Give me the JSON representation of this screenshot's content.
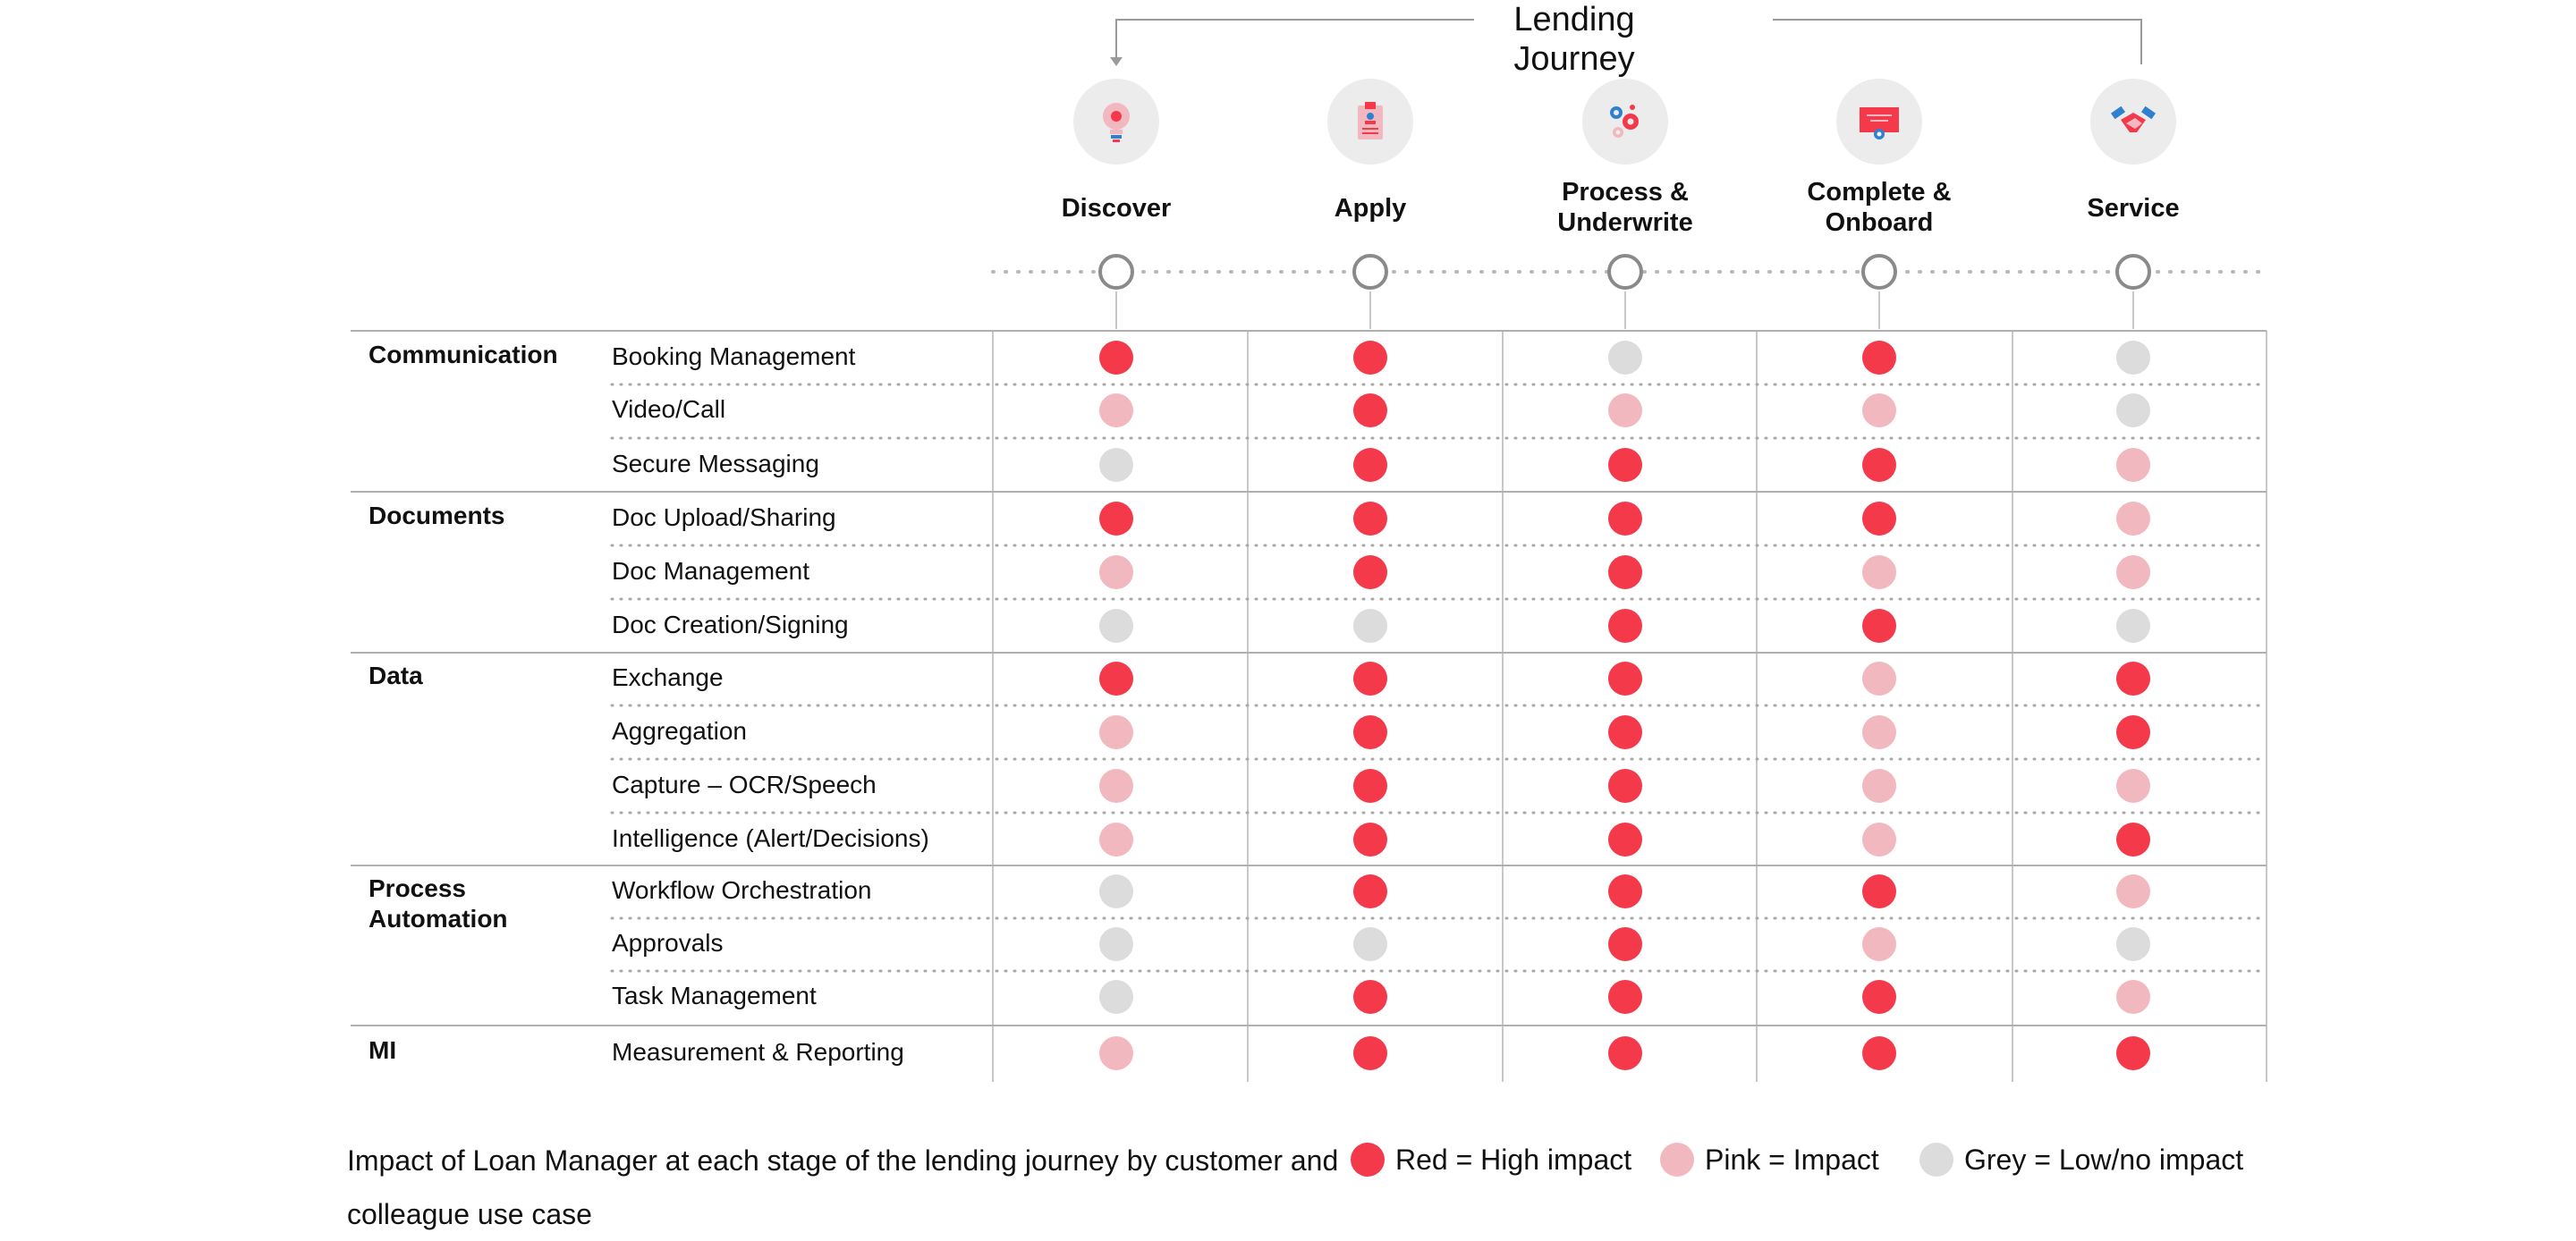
{
  "journey_title": "Lending Journey",
  "colors": {
    "high": "#f4394b",
    "impact": "#f2b8bf",
    "low": "#dcdcdc",
    "rule": "#c8c8c8",
    "ring": "#8a8a8a"
  },
  "stages": [
    {
      "label": "Discover",
      "icon": "lightbulb-icon"
    },
    {
      "label": "Apply",
      "icon": "application-form-icon"
    },
    {
      "label": "Process &\nUnderwrite",
      "icon": "gears-icon"
    },
    {
      "label": "Complete &\nOnboard",
      "icon": "certificate-icon"
    },
    {
      "label": "Service",
      "icon": "handshake-icon"
    }
  ],
  "categories": [
    {
      "label": "Communication",
      "rows": [
        0,
        2
      ]
    },
    {
      "label": "Documents",
      "rows": [
        3,
        5
      ]
    },
    {
      "label": "Data",
      "rows": [
        6,
        9
      ]
    },
    {
      "label": "Process\nAutomation",
      "rows": [
        10,
        12
      ]
    },
    {
      "label": "MI",
      "rows": [
        13,
        13
      ]
    }
  ],
  "rows": [
    {
      "label": "Booking Management",
      "impact": [
        "high",
        "high",
        "low",
        "high",
        "low"
      ]
    },
    {
      "label": "Video/Call",
      "impact": [
        "impact",
        "high",
        "impact",
        "impact",
        "low"
      ]
    },
    {
      "label": "Secure Messaging",
      "impact": [
        "low",
        "high",
        "high",
        "high",
        "impact"
      ]
    },
    {
      "label": "Doc Upload/Sharing",
      "impact": [
        "high",
        "high",
        "high",
        "high",
        "impact"
      ]
    },
    {
      "label": "Doc Management",
      "impact": [
        "impact",
        "high",
        "high",
        "impact",
        "impact"
      ]
    },
    {
      "label": "Doc Creation/Signing",
      "impact": [
        "low",
        "low",
        "high",
        "high",
        "low"
      ]
    },
    {
      "label": "Exchange",
      "impact": [
        "high",
        "high",
        "high",
        "impact",
        "high"
      ]
    },
    {
      "label": "Aggregation",
      "impact": [
        "impact",
        "high",
        "high",
        "impact",
        "high"
      ]
    },
    {
      "label": "Capture – OCR/Speech",
      "impact": [
        "impact",
        "high",
        "high",
        "impact",
        "impact"
      ]
    },
    {
      "label": "Intelligence (Alert/Decisions)",
      "impact": [
        "impact",
        "high",
        "high",
        "impact",
        "high"
      ]
    },
    {
      "label": "Workflow Orchestration",
      "impact": [
        "low",
        "high",
        "high",
        "high",
        "impact"
      ]
    },
    {
      "label": "Approvals",
      "impact": [
        "low",
        "low",
        "high",
        "impact",
        "low"
      ]
    },
    {
      "label": "Task Management",
      "impact": [
        "low",
        "high",
        "high",
        "high",
        "impact"
      ]
    },
    {
      "label": "Measurement & Reporting",
      "impact": [
        "impact",
        "high",
        "high",
        "high",
        "high"
      ]
    }
  ],
  "caption": "Impact of Loan Manager at each stage of the lending journey by customer and colleague use case",
  "legend": [
    {
      "level": "high",
      "label": "Red = High impact"
    },
    {
      "level": "impact",
      "label": "Pink = Impact"
    },
    {
      "level": "low",
      "label": "Grey = Low/no impact"
    }
  ]
}
